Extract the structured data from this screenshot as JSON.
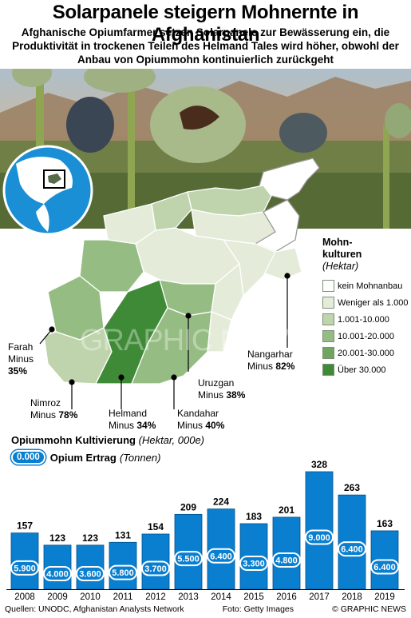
{
  "header": {
    "title": "Solarpanele steigern Mohnernte in Afghanistan",
    "subtitle": "Afghanische Opiumfarmer setzen Solarpanele zur Bewässerung ein, die Produktivität in trockenen Teilen des Helmand Tales wird höher, obwohl der Anbau von Opiummohn kontinuierlich zurückgeht"
  },
  "legend": {
    "title_line1": "Mohn-",
    "title_line2": "kulturen",
    "unit": "(Hektar)",
    "items": [
      {
        "label": "kein Mohnanbau",
        "color": "#ffffff"
      },
      {
        "label": "Weniger als 1.000",
        "color": "#e4ecd9"
      },
      {
        "label": "1.001-10.000",
        "color": "#bfd4ad"
      },
      {
        "label": "10.001-20.000",
        "color": "#95bc82"
      },
      {
        "label": "20.001-30.000",
        "color": "#6fa65e"
      },
      {
        "label": "Über 30.000",
        "color": "#3f8a37"
      }
    ]
  },
  "regions": {
    "farah": {
      "name": "Farah",
      "change": "Minus",
      "pct": "35%"
    },
    "nimroz": {
      "name": "Nimroz",
      "change": "Minus",
      "pct": "78%"
    },
    "helmand": {
      "name": "Helmand",
      "change": "Minus",
      "pct": "34%"
    },
    "kandahar": {
      "name": "Kandahar",
      "change": "Minus",
      "pct": "40%"
    },
    "uruzgan": {
      "name": "Uruzgan",
      "change": "Minus",
      "pct": "38%"
    },
    "nangarhar": {
      "name": "Nangarhar",
      "change": "Minus",
      "pct": "82%"
    }
  },
  "chart_data": {
    "type": "bar",
    "title": "Opiummohn Kultivierung",
    "unit": "(Hektar, 000e)",
    "categories": [
      "2008",
      "2009",
      "2010",
      "2011",
      "2012",
      "2013",
      "2014",
      "2015",
      "2016",
      "2017",
      "2018",
      "2019"
    ],
    "series": [
      {
        "name": "Opiummohn Kultivierung",
        "values": [
          157,
          123,
          123,
          131,
          154,
          209,
          224,
          183,
          201,
          328,
          263,
          163
        ]
      },
      {
        "name": "Opium Ertrag",
        "values": [
          "5.900",
          "4.000",
          "3.600",
          "5.800",
          "3.700",
          "5.500",
          "6.400",
          "3.300",
          "4.800",
          "9.000",
          "6.400",
          "6.400"
        ]
      }
    ],
    "ylim": [
      0,
      340
    ],
    "bar_color": "#0a7fd0"
  },
  "yield_key": {
    "sample": "0.000",
    "label": "Opium Ertrag",
    "unit": "(Tonnen)"
  },
  "footer": {
    "sources": "Quellen: UNODC, Afghanistan Analysts Network",
    "photo": "Foto: Getty Images",
    "copyright": "© GRAPHIC NEWS"
  }
}
